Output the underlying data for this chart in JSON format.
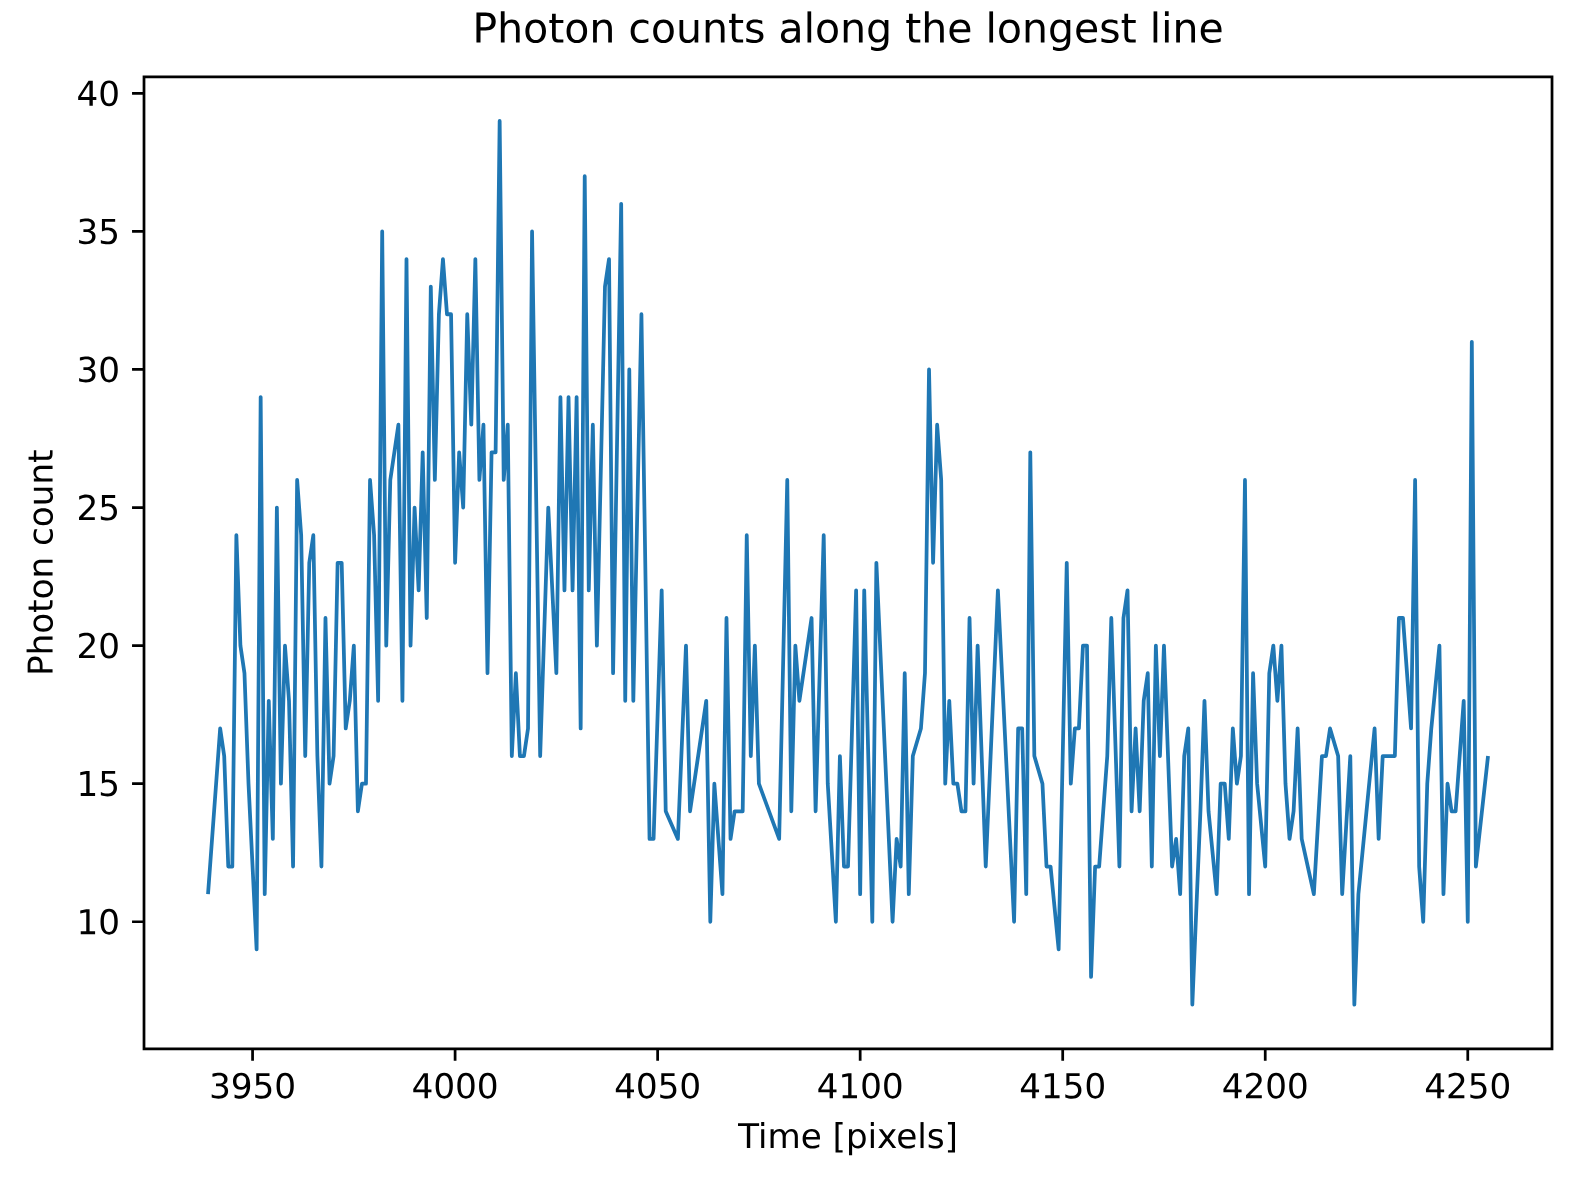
{
  "chart_data": {
    "type": "line",
    "title": "Photon counts along the longest line",
    "xlabel": "Time [pixels]",
    "ylabel": "Photon count",
    "x": [
      3939,
      3942,
      3943,
      3944,
      3945,
      3946,
      3947,
      3948,
      3949,
      3951,
      3952,
      3953,
      3954,
      3955,
      3956,
      3957,
      3958,
      3959,
      3960,
      3961,
      3962,
      3963,
      3964,
      3965,
      3966,
      3967,
      3968,
      3969,
      3970,
      3971,
      3972,
      3973,
      3974,
      3975,
      3976,
      3977,
      3978,
      3979,
      3980,
      3981,
      3982,
      3983,
      3984,
      3986,
      3987,
      3988,
      3989,
      3990,
      3991,
      3992,
      3993,
      3994,
      3995,
      3996,
      3997,
      3998,
      3999,
      4000,
      4001,
      4002,
      4003,
      4004,
      4005,
      4006,
      4007,
      4008,
      4009,
      4010,
      4011,
      4012,
      4013,
      4014,
      4015,
      4016,
      4017,
      4018,
      4019,
      4021,
      4023,
      4025,
      4026,
      4027,
      4028,
      4029,
      4030,
      4031,
      4032,
      4033,
      4034,
      4035,
      4037,
      4038,
      4039,
      4041,
      4042,
      4043,
      4044,
      4046,
      4048,
      4049,
      4051,
      4052,
      4055,
      4057,
      4058,
      4062,
      4063,
      4064,
      4066,
      4067,
      4068,
      4069,
      4071,
      4072,
      4073,
      4074,
      4075,
      4080,
      4082,
      4083,
      4084,
      4085,
      4088,
      4089,
      4091,
      4092,
      4094,
      4095,
      4096,
      4097,
      4099,
      4100,
      4101,
      4103,
      4104,
      4108,
      4109,
      4110,
      4111,
      4112,
      4113,
      4115,
      4116,
      4117,
      4118,
      4119,
      4120,
      4121,
      4122,
      4123,
      4124,
      4125,
      4126,
      4127,
      4128,
      4129,
      4131,
      4134,
      4138,
      4139,
      4140,
      4141,
      4142,
      4143,
      4145,
      4146,
      4147,
      4149,
      4151,
      4152,
      4153,
      4154,
      4155,
      4156,
      4157,
      4158,
      4159,
      4161,
      4162,
      4164,
      4165,
      4166,
      4167,
      4168,
      4169,
      4170,
      4171,
      4172,
      4173,
      4174,
      4175,
      4177,
      4178,
      4179,
      4180,
      4181,
      4182,
      4184,
      4185,
      4186,
      4188,
      4189,
      4190,
      4191,
      4192,
      4193,
      4194,
      4195,
      4196,
      4197,
      4198,
      4200,
      4201,
      4202,
      4203,
      4204,
      4205,
      4206,
      4207,
      4208,
      4209,
      4212,
      4214,
      4215,
      4216,
      4218,
      4219,
      4221,
      4222,
      4223,
      4225,
      4227,
      4228,
      4229,
      4232,
      4233,
      4234,
      4236,
      4237,
      4238,
      4239,
      4240,
      4241,
      4243,
      4244,
      4245,
      4246,
      4247,
      4249,
      4250,
      4251,
      4252,
      4255
    ],
    "series": [
      {
        "color": "#1f77b4",
        "values": [
          11,
          17,
          16,
          12,
          12,
          24,
          20,
          19,
          15,
          9,
          29,
          11,
          18,
          13,
          25,
          15,
          20,
          18,
          12,
          26,
          24,
          16,
          23,
          24,
          16,
          12,
          21,
          15,
          16,
          23,
          23,
          17,
          18,
          20,
          14,
          15,
          15,
          26,
          24,
          18,
          35,
          20,
          26,
          28,
          18,
          34,
          20,
          25,
          22,
          27,
          21,
          33,
          26,
          32,
          34,
          32,
          32,
          23,
          27,
          25,
          32,
          28,
          34,
          26,
          28,
          19,
          27,
          27,
          39,
          26,
          28,
          16,
          19,
          16,
          16,
          17,
          35,
          16,
          25,
          19,
          29,
          22,
          29,
          22,
          29,
          17,
          37,
          22,
          28,
          20,
          33,
          34,
          19,
          36,
          18,
          30,
          18,
          32,
          13,
          13,
          22,
          14,
          13,
          20,
          14,
          18,
          10,
          15,
          11,
          21,
          13,
          14,
          14,
          24,
          16,
          20,
          15,
          13,
          26,
          14,
          20,
          18,
          21,
          14,
          24,
          15,
          10,
          16,
          12,
          12,
          22,
          11,
          22,
          10,
          23,
          10,
          13,
          12,
          19,
          11,
          16,
          17,
          19,
          30,
          23,
          28,
          26,
          15,
          18,
          15,
          15,
          14,
          14,
          21,
          15,
          20,
          12,
          22,
          10,
          17,
          17,
          11,
          27,
          16,
          15,
          12,
          12,
          9,
          23,
          15,
          17,
          17,
          20,
          20,
          8,
          12,
          12,
          16,
          21,
          12,
          21,
          22,
          14,
          17,
          14,
          18,
          19,
          12,
          20,
          16,
          20,
          12,
          13,
          11,
          16,
          17,
          7,
          14,
          18,
          14,
          11,
          15,
          15,
          13,
          17,
          15,
          16,
          26,
          11,
          19,
          15,
          12,
          19,
          20,
          18,
          20,
          15,
          13,
          14,
          17,
          13,
          11,
          16,
          16,
          17,
          16,
          11,
          16,
          7,
          11,
          14,
          17,
          13,
          16,
          16,
          21,
          21,
          17,
          26,
          12,
          10,
          15,
          17,
          20,
          11,
          15,
          14,
          14,
          18,
          10,
          31,
          12,
          16
        ]
      }
    ],
    "xlim": [
      3923.2,
      4270.8
    ],
    "ylim": [
      5.4,
      40.6
    ],
    "xticks": [
      3950,
      4000,
      4050,
      4100,
      4150,
      4200,
      4250
    ],
    "yticks": [
      10,
      15,
      20,
      25,
      30,
      35,
      40
    ]
  }
}
